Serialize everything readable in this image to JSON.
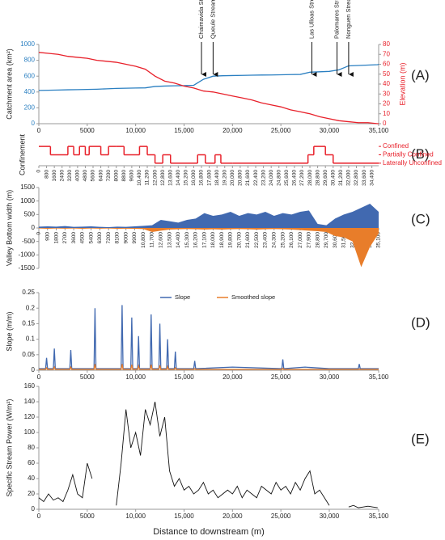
{
  "chart_data": [
    {
      "type": "line",
      "panel_label": "(A)",
      "y_label": "Catchment area (km²)",
      "y2_label": "Elevation (m)",
      "x": [
        0,
        1000,
        2000,
        3000,
        4000,
        5000,
        6000,
        7000,
        8000,
        9000,
        10000,
        11000,
        12000,
        13000,
        14000,
        15000,
        16000,
        17000,
        18000,
        19000,
        20000,
        21000,
        22000,
        23000,
        24000,
        25000,
        26000,
        27000,
        28000,
        29000,
        30000,
        31000,
        32000,
        33000,
        34000,
        35000,
        35100
      ],
      "series": [
        {
          "color": "#2a7fc1",
          "values": [
            420,
            422,
            425,
            428,
            430,
            432,
            435,
            440,
            445,
            448,
            450,
            452,
            470,
            475,
            478,
            480,
            485,
            560,
            600,
            605,
            608,
            610,
            612,
            614,
            615,
            617,
            620,
            622,
            650,
            655,
            660,
            680,
            730,
            735,
            740,
            745,
            750
          ]
        },
        {
          "color": "#e8202a",
          "axis": "y2",
          "values": [
            72,
            71,
            70,
            68,
            67,
            66,
            64,
            63,
            62,
            60,
            58,
            55,
            48,
            43,
            41,
            38,
            36,
            33,
            32,
            30,
            28,
            26,
            24,
            21,
            19,
            17,
            14,
            12,
            10,
            7,
            5,
            3,
            2,
            1,
            1,
            0,
            0
          ]
        }
      ],
      "xlim": [
        0,
        35100
      ],
      "xticks": [
        0,
        5000,
        {
          "value": 10000,
          "label": "10,000"
        },
        {
          "value": 15000,
          "label": "15,000"
        },
        {
          "value": 20000,
          "label": "20,000"
        },
        {
          "value": 25000,
          "label": "25,000"
        },
        {
          "value": 30000,
          "label": "30,000"
        },
        {
          "value": 35100,
          "label": "35,100"
        }
      ],
      "ylim": [
        0,
        1000
      ],
      "yticks": [
        0,
        200,
        400,
        600,
        800,
        1000
      ],
      "y2lim": [
        0,
        80
      ],
      "y2ticks": [
        0,
        10,
        20,
        30,
        40,
        50,
        60,
        70,
        80
      ],
      "annotations": [
        {
          "text": "Chaimavida Stream",
          "x": 16800
        },
        {
          "text": "Queule Stream",
          "x": 18000
        },
        {
          "text": "Las Ulloas Stream",
          "x": 28200
        },
        {
          "text": "Palomares Stream",
          "x": 30800
        },
        {
          "text": "Nonguen Stream",
          "x": 32000
        }
      ]
    },
    {
      "type": "step",
      "panel_label": "(B)",
      "y_label": "Confinement",
      "color": "#e8202a",
      "x": [
        0,
        1200,
        3000,
        3600,
        4200,
        4800,
        5200,
        6400,
        7200,
        8000,
        8800,
        10400,
        11200,
        12000,
        12800,
        13600,
        16400,
        17200,
        18200,
        18800,
        20000,
        27800,
        28400,
        29600,
        30400,
        35100
      ],
      "values": [
        2,
        1,
        2,
        1,
        2,
        1,
        2,
        1,
        2,
        2,
        1,
        2,
        1,
        0,
        1,
        0,
        1,
        0,
        1,
        0,
        0,
        1,
        2,
        1,
        0,
        0
      ],
      "xlim": [
        0,
        35100
      ],
      "xticks": [
        0,
        800,
        1600,
        2400,
        3200,
        4000,
        4800,
        5600,
        6400,
        7200,
        8000,
        8800,
        9600,
        {
          "value": 10400,
          "label": "10,400"
        },
        {
          "value": 11200,
          "label": "11,200"
        },
        {
          "value": 12000,
          "label": "12,000"
        },
        {
          "value": 12800,
          "label": "12,800"
        },
        {
          "value": 13600,
          "label": "13,600"
        },
        {
          "value": 14400,
          "label": "14,400"
        },
        {
          "value": 15200,
          "label": "15,200"
        },
        {
          "value": 16000,
          "label": "16,000"
        },
        {
          "value": 16800,
          "label": "16,800"
        },
        {
          "value": 17600,
          "label": "17,600"
        },
        {
          "value": 18400,
          "label": "18,400"
        },
        {
          "value": 19200,
          "label": "19,200"
        },
        {
          "value": 20000,
          "label": "20,000"
        },
        {
          "value": 20800,
          "label": "20,800"
        },
        {
          "value": 21600,
          "label": "21,600"
        },
        {
          "value": 22400,
          "label": "22,400"
        },
        {
          "value": 23200,
          "label": "23,200"
        },
        {
          "value": 24000,
          "label": "24,000"
        },
        {
          "value": 24800,
          "label": "24,800"
        },
        {
          "value": 25600,
          "label": "25,600"
        },
        {
          "value": 26400,
          "label": "26,400"
        },
        {
          "value": 27200,
          "label": "27,200"
        },
        {
          "value": 28000,
          "label": "28,000"
        },
        {
          "value": 28800,
          "label": "28,800"
        },
        {
          "value": 29600,
          "label": "29,600"
        },
        {
          "value": 30400,
          "label": "30,400"
        },
        {
          "value": 31200,
          "label": "31,200"
        },
        {
          "value": 32000,
          "label": "32,000"
        },
        {
          "value": 32800,
          "label": "32,800"
        },
        {
          "value": 33600,
          "label": "33,600"
        },
        {
          "value": 34400,
          "label": "34,400"
        }
      ],
      "ylim": [
        -0.3,
        2.3
      ],
      "yticks": [
        {
          "value": 2,
          "label": "Confined"
        },
        {
          "value": 1,
          "label": "Partially Confined"
        },
        {
          "value": 0,
          "label": "Laterally  Unconfined"
        }
      ]
    },
    {
      "type": "area",
      "panel_label": "(C)",
      "y_label": "Valley Bottom width  (m)",
      "x": [
        0,
        900,
        1800,
        2700,
        3600,
        4500,
        5400,
        6300,
        7200,
        8100,
        9000,
        9900,
        10800,
        11700,
        12600,
        13500,
        14400,
        15300,
        16200,
        17100,
        18000,
        18900,
        19800,
        20700,
        21600,
        22500,
        23400,
        24300,
        25200,
        26100,
        27000,
        27900,
        28800,
        29700,
        30600,
        31500,
        32400,
        33300,
        34200,
        35100
      ],
      "series": [
        {
          "color": "#4169b0",
          "values": [
            50,
            60,
            50,
            70,
            40,
            50,
            60,
            40,
            30,
            50,
            40,
            60,
            80,
            100,
            300,
            250,
            200,
            300,
            350,
            550,
            450,
            500,
            600,
            450,
            550,
            500,
            600,
            450,
            550,
            500,
            600,
            650,
            150,
            100,
            350,
            500,
            600,
            750,
            900,
            600
          ]
        },
        {
          "color": "#e87d2a",
          "values": [
            -20,
            -30,
            -20,
            -25,
            -20,
            -30,
            -20,
            -25,
            -20,
            -30,
            -25,
            -30,
            -40,
            -150,
            -100,
            -60,
            -50,
            -40,
            -50,
            -60,
            -50,
            -60,
            -50,
            -40,
            -50,
            -60,
            -50,
            -40,
            -50,
            -60,
            -80,
            -100,
            -120,
            -150,
            -300,
            -350,
            -500,
            -1450,
            -700,
            -200
          ]
        }
      ],
      "xlim": [
        0,
        35100
      ],
      "xticks": [
        0,
        900,
        1800,
        2700,
        3600,
        4500,
        5400,
        6300,
        7200,
        8100,
        9000,
        9900,
        {
          "value": 10800,
          "label": "10,800"
        },
        {
          "value": 11700,
          "label": "11,700"
        },
        {
          "value": 12600,
          "label": "12,600"
        },
        {
          "value": 13500,
          "label": "13,500"
        },
        {
          "value": 14400,
          "label": "14,400"
        },
        {
          "value": 15300,
          "label": "15,300"
        },
        {
          "value": 16200,
          "label": "16,200"
        },
        {
          "value": 17100,
          "label": "17,100"
        },
        {
          "value": 18000,
          "label": "18,000"
        },
        {
          "value": 18900,
          "label": "18,900"
        },
        {
          "value": 19800,
          "label": "19,800"
        },
        {
          "value": 20700,
          "label": "20,700"
        },
        {
          "value": 21600,
          "label": "21,600"
        },
        {
          "value": 22500,
          "label": "22,500"
        },
        {
          "value": 23400,
          "label": "23,400"
        },
        {
          "value": 24300,
          "label": "24,300"
        },
        {
          "value": 25200,
          "label": "25,200"
        },
        {
          "value": 26100,
          "label": "26,100"
        },
        {
          "value": 27000,
          "label": "27,000"
        },
        {
          "value": 27900,
          "label": "27,900"
        },
        {
          "value": 28800,
          "label": "28,800"
        },
        {
          "value": 29700,
          "label": "29,700"
        },
        {
          "value": 30600,
          "label": "30,600"
        },
        {
          "value": 31500,
          "label": "31,500"
        },
        {
          "value": 32400,
          "label": "32,400"
        },
        {
          "value": 33300,
          "label": "33,300"
        },
        {
          "value": 34200,
          "label": "34,200"
        },
        {
          "value": 35100,
          "label": "35,100"
        }
      ],
      "ylim": [
        -1500,
        1500
      ],
      "yticks": [
        -1500,
        -1000,
        -500,
        0,
        500,
        1000,
        1500
      ]
    },
    {
      "type": "line",
      "panel_label": "(D)",
      "y_label": "Slope (m/m)",
      "legend": "top",
      "x": [
        0,
        700,
        800,
        900,
        1500,
        1600,
        1700,
        3200,
        3300,
        3400,
        5700,
        5800,
        5900,
        8500,
        8600,
        8700,
        9500,
        9600,
        9700,
        10200,
        10300,
        10400,
        11500,
        11600,
        11700,
        12400,
        12500,
        12600,
        13200,
        13300,
        13400,
        14000,
        14100,
        14200,
        16000,
        16100,
        16200,
        20000,
        25100,
        25200,
        25300,
        27500,
        30000,
        33000,
        33100,
        33200,
        35100
      ],
      "series": [
        {
          "name": "Slope",
          "color": "#4169b0",
          "values": [
            0.005,
            0.005,
            0.04,
            0.005,
            0.005,
            0.07,
            0.005,
            0.005,
            0.065,
            0.005,
            0.005,
            0.2,
            0.005,
            0.005,
            0.21,
            0.005,
            0.005,
            0.17,
            0.005,
            0.005,
            0.11,
            0.005,
            0.005,
            0.18,
            0.005,
            0.005,
            0.15,
            0.005,
            0.005,
            0.1,
            0.005,
            0.005,
            0.06,
            0.005,
            0.005,
            0.03,
            0.005,
            0.01,
            0.005,
            0.035,
            0.005,
            0.01,
            0.005,
            0.005,
            0.02,
            0.005,
            0.005
          ]
        },
        {
          "name": "Smoothed slope",
          "color": "#e87d2a",
          "values": [
            0.003,
            0.003,
            0.008,
            0.003,
            0.003,
            0.01,
            0.003,
            0.003,
            0.01,
            0.003,
            0.003,
            0.02,
            0.003,
            0.003,
            0.02,
            0.003,
            0.003,
            0.018,
            0.003,
            0.003,
            0.014,
            0.003,
            0.003,
            0.018,
            0.003,
            0.003,
            0.016,
            0.003,
            0.003,
            0.012,
            0.003,
            0.003,
            0.008,
            0.003,
            0.003,
            0.005,
            0.003,
            0.003,
            0.003,
            0.006,
            0.003,
            0.003,
            0.003,
            0.003,
            0.004,
            0.003,
            0.003
          ]
        }
      ],
      "xlim": [
        0,
        35100
      ],
      "xticks": [
        0,
        5000,
        {
          "value": 10000,
          "label": "10,000"
        },
        {
          "value": 15000,
          "label": "15,000"
        },
        {
          "value": 20000,
          "label": "20,000"
        },
        {
          "value": 25000,
          "label": "25,000"
        },
        {
          "value": 30000,
          "label": "30,000"
        },
        {
          "value": 35100,
          "label": "35,100"
        }
      ],
      "ylim": [
        0,
        0.25
      ],
      "yticks": [
        0,
        0.05,
        0.1,
        0.15,
        0.2,
        0.25
      ]
    },
    {
      "type": "line",
      "panel_label": "(E)",
      "y_label": "Specific Stream Power (W/m²)",
      "x_label": "Distance to downstream (m)",
      "x": [
        0,
        500,
        1000,
        1500,
        2000,
        2500,
        3000,
        3500,
        4000,
        4500,
        5000,
        5500,
        6000,
        6500,
        7000,
        7500,
        8000,
        8500,
        9000,
        9500,
        10000,
        10500,
        11000,
        11500,
        12000,
        12500,
        13000,
        13500,
        14000,
        14500,
        15000,
        15500,
        16000,
        16500,
        17000,
        17500,
        18000,
        18500,
        19000,
        19500,
        20000,
        20500,
        21000,
        21500,
        22000,
        22500,
        23000,
        23500,
        24000,
        24500,
        25000,
        25500,
        26000,
        26500,
        27000,
        27500,
        28000,
        28500,
        29000,
        29500,
        30000,
        30500,
        31000,
        31500,
        32000,
        32500,
        33000,
        33500,
        34000,
        34500,
        35000
      ],
      "series": [
        {
          "color": "#111111",
          "values": [
            15,
            10,
            20,
            12,
            15,
            10,
            25,
            45,
            20,
            15,
            60,
            40,
            null,
            null,
            null,
            null,
            5,
            60,
            130,
            80,
            100,
            70,
            130,
            110,
            140,
            95,
            120,
            50,
            30,
            40,
            25,
            30,
            20,
            25,
            35,
            20,
            25,
            15,
            20,
            25,
            20,
            30,
            15,
            25,
            20,
            15,
            30,
            25,
            20,
            35,
            25,
            30,
            20,
            35,
            25,
            40,
            50,
            20,
            25,
            15,
            5,
            null,
            null,
            null,
            3,
            5,
            2,
            3,
            4,
            3,
            2
          ]
        }
      ],
      "xlim": [
        0,
        35100
      ],
      "xticks": [
        0,
        5000,
        {
          "value": 10000,
          "label": "10,000"
        },
        {
          "value": 15000,
          "label": "15,000"
        },
        {
          "value": 20000,
          "label": "20,000"
        },
        {
          "value": 25000,
          "label": "25,000"
        },
        {
          "value": 30000,
          "label": "30,000"
        },
        {
          "value": 35100,
          "label": "35,100"
        }
      ],
      "ylim": [
        0,
        160
      ],
      "yticks": [
        0,
        20,
        40,
        60,
        80,
        100,
        120,
        140,
        160
      ]
    }
  ]
}
